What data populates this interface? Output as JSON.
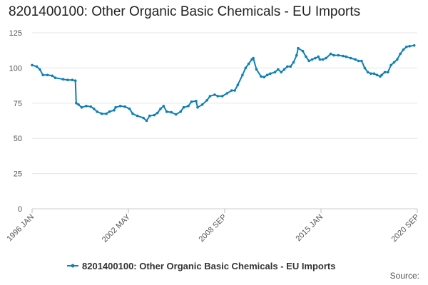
{
  "chart_data": {
    "type": "line",
    "title": "8201400100: Other Organic Basic Chemicals - EU Imports",
    "xlabel": "",
    "ylabel": "",
    "ylim": [
      0,
      125
    ],
    "yticks": [
      0,
      25,
      50,
      75,
      100,
      125
    ],
    "xticks": [
      "1996 JAN",
      "2002 MAY",
      "2008 SEP",
      "2015 JAN",
      "2020 SEP"
    ],
    "x_range": [
      1996.0,
      2020.9
    ],
    "grid": "horizontal",
    "legend_position": "bottom-center",
    "source_label": "Source:",
    "line_color": "#0f7fb5",
    "series": [
      {
        "name": "8201400100: Other Organic Basic Chemicals - EU Imports",
        "points": [
          [
            1996.0,
            102
          ],
          [
            1996.3,
            101
          ],
          [
            1996.5,
            99
          ],
          [
            1996.7,
            95
          ],
          [
            1997.0,
            95
          ],
          [
            1997.3,
            94.5
          ],
          [
            1997.5,
            93
          ],
          [
            1998.0,
            92
          ],
          [
            1998.3,
            91.5
          ],
          [
            1998.6,
            91.5
          ],
          [
            1998.8,
            91
          ],
          [
            1998.85,
            75
          ],
          [
            1999.0,
            74
          ],
          [
            1999.2,
            72
          ],
          [
            1999.5,
            73
          ],
          [
            1999.8,
            72.5
          ],
          [
            2000.0,
            71
          ],
          [
            2000.2,
            69
          ],
          [
            2000.5,
            67.5
          ],
          [
            2000.8,
            67.5
          ],
          [
            2001.0,
            69
          ],
          [
            2001.3,
            70
          ],
          [
            2001.4,
            72
          ],
          [
            2001.7,
            73
          ],
          [
            2002.0,
            72.5
          ],
          [
            2002.3,
            71
          ],
          [
            2002.5,
            67.5
          ],
          [
            2002.8,
            66
          ],
          [
            2003.2,
            64.5
          ],
          [
            2003.4,
            62.5
          ],
          [
            2003.6,
            66
          ],
          [
            2003.9,
            66.5
          ],
          [
            2004.1,
            68
          ],
          [
            2004.3,
            71
          ],
          [
            2004.5,
            73
          ],
          [
            2004.7,
            69
          ],
          [
            2005.0,
            68.5
          ],
          [
            2005.3,
            67
          ],
          [
            2005.6,
            69
          ],
          [
            2005.8,
            72
          ],
          [
            2006.1,
            73
          ],
          [
            2006.3,
            76
          ],
          [
            2006.6,
            76.5
          ],
          [
            2006.7,
            72
          ],
          [
            2007.0,
            74
          ],
          [
            2007.3,
            77
          ],
          [
            2007.5,
            80
          ],
          [
            2007.8,
            81
          ],
          [
            2008.0,
            80
          ],
          [
            2008.3,
            80
          ],
          [
            2008.6,
            82
          ],
          [
            2008.9,
            84
          ],
          [
            2009.1,
            84
          ],
          [
            2009.3,
            88
          ],
          [
            2009.6,
            95
          ],
          [
            2009.8,
            100
          ],
          [
            2010.0,
            103
          ],
          [
            2010.2,
            106
          ],
          [
            2010.3,
            107
          ],
          [
            2010.5,
            99
          ],
          [
            2010.8,
            94
          ],
          [
            2011.0,
            93.5
          ],
          [
            2011.2,
            95
          ],
          [
            2011.4,
            96
          ],
          [
            2011.7,
            97
          ],
          [
            2011.9,
            99
          ],
          [
            2012.1,
            97
          ],
          [
            2012.3,
            99
          ],
          [
            2012.5,
            101
          ],
          [
            2012.7,
            101
          ],
          [
            2012.9,
            104
          ],
          [
            2013.1,
            109
          ],
          [
            2013.2,
            114
          ],
          [
            2013.5,
            112
          ],
          [
            2013.7,
            108
          ],
          [
            2013.9,
            105
          ],
          [
            2014.1,
            106
          ],
          [
            2014.3,
            107
          ],
          [
            2014.5,
            108
          ],
          [
            2014.6,
            106
          ],
          [
            2014.8,
            106
          ],
          [
            2015.0,
            107
          ],
          [
            2015.3,
            110
          ],
          [
            2015.5,
            109
          ],
          [
            2015.8,
            109
          ],
          [
            2016.1,
            108.5
          ],
          [
            2016.3,
            108
          ],
          [
            2016.6,
            107
          ],
          [
            2016.9,
            106
          ],
          [
            2017.1,
            105
          ],
          [
            2017.3,
            105
          ],
          [
            2017.5,
            100
          ],
          [
            2017.7,
            97
          ],
          [
            2017.9,
            96
          ],
          [
            2018.1,
            96
          ],
          [
            2018.3,
            95
          ],
          [
            2018.5,
            94
          ],
          [
            2018.6,
            95
          ],
          [
            2018.8,
            97
          ],
          [
            2019.0,
            97
          ],
          [
            2019.2,
            102
          ],
          [
            2019.4,
            104
          ],
          [
            2019.6,
            106
          ],
          [
            2019.8,
            110
          ],
          [
            2020.0,
            113
          ],
          [
            2020.2,
            115
          ],
          [
            2020.4,
            115.5
          ],
          [
            2020.7,
            116
          ]
        ]
      }
    ]
  }
}
